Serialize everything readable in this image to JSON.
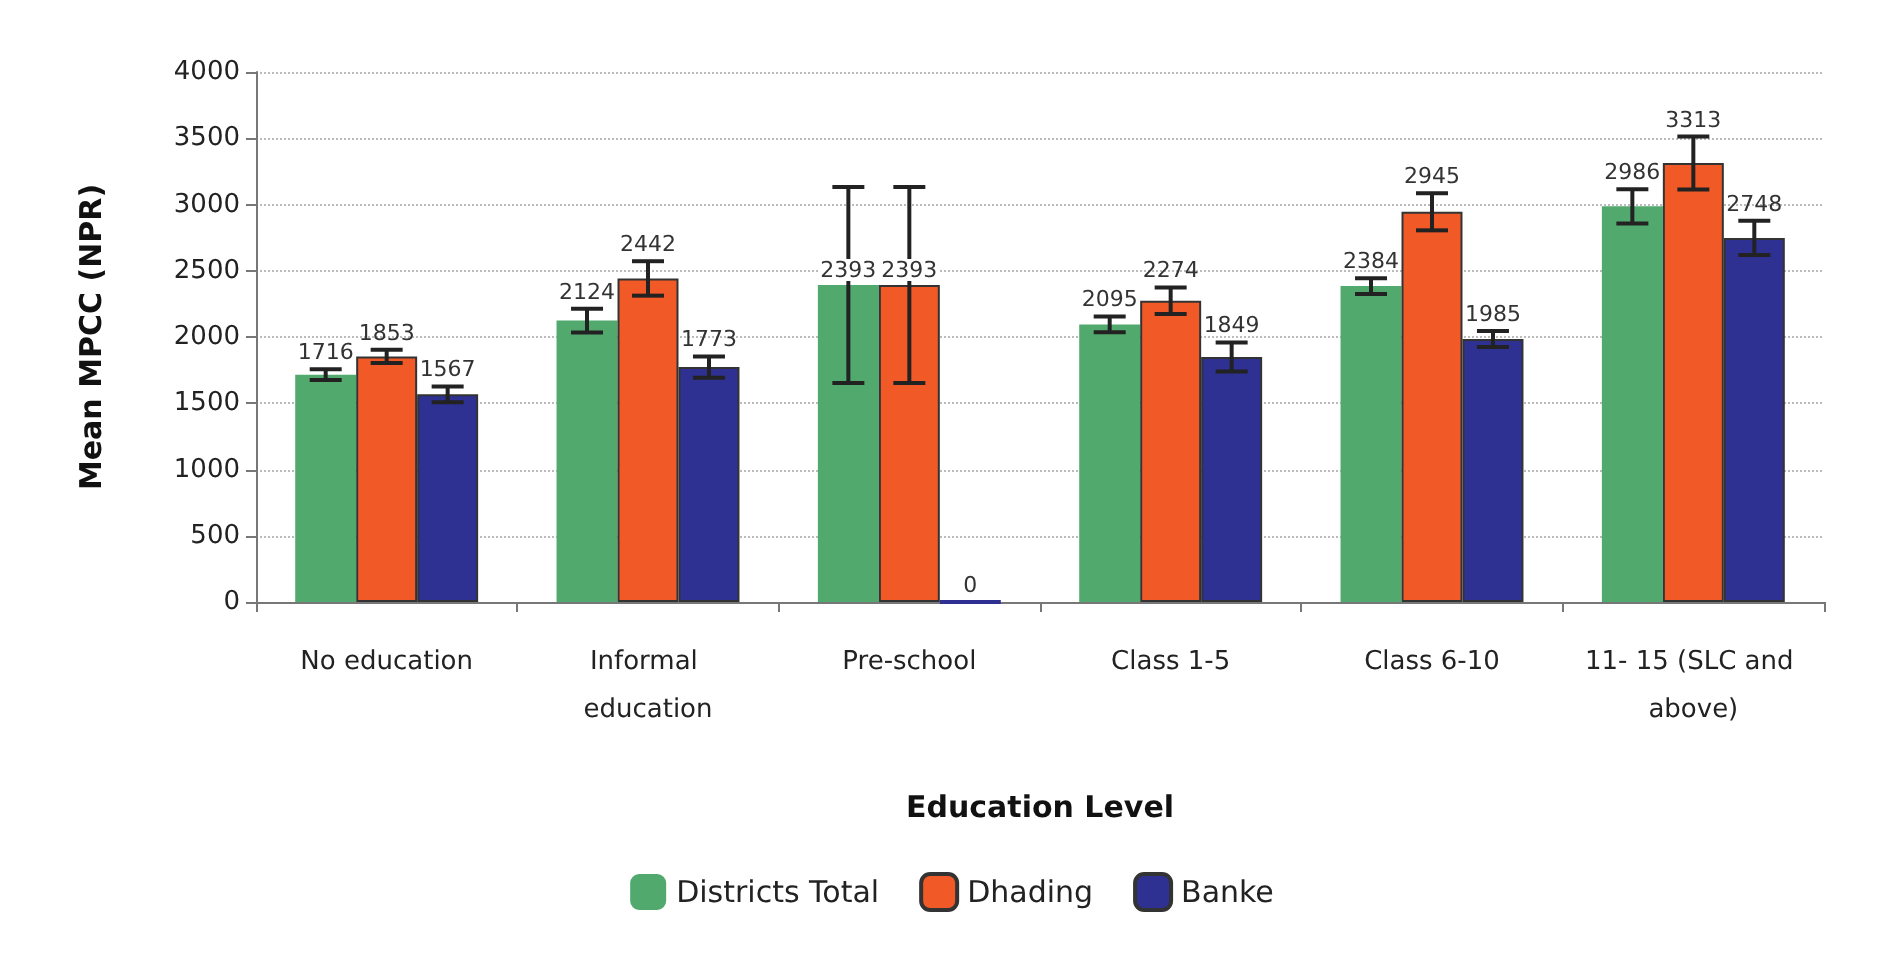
{
  "chart_data": {
    "type": "bar",
    "xlabel": "Education Level",
    "ylabel": "Mean MPCC (NPR)",
    "categories": [
      "No education",
      "Informal education",
      "Pre-school",
      "Class 1-5",
      "Class 6-10",
      "11- 15 (SLC and above)"
    ],
    "series": [
      {
        "name": "Districts Total",
        "color": "#52a96e",
        "values": [
          1716,
          2124,
          2393,
          2095,
          2384,
          2986
        ],
        "errors": [
          40,
          90,
          740,
          60,
          60,
          130
        ]
      },
      {
        "name": "Dhading",
        "color": "#f15a27",
        "values": [
          1853,
          2442,
          2393,
          2274,
          2945,
          3313
        ],
        "errors": [
          50,
          130,
          740,
          100,
          140,
          200
        ]
      },
      {
        "name": "Banke",
        "color": "#2e3192",
        "values": [
          1567,
          1773,
          0,
          1849,
          1985,
          2748
        ],
        "errors": [
          60,
          80,
          null,
          110,
          60,
          130
        ]
      }
    ],
    "ylim": [
      0,
      4000
    ],
    "yticks": [
      0,
      500,
      1000,
      1500,
      2000,
      2500,
      3000,
      3500,
      4000
    ],
    "grid": "y",
    "legend": "bottom",
    "data_labels": true
  }
}
